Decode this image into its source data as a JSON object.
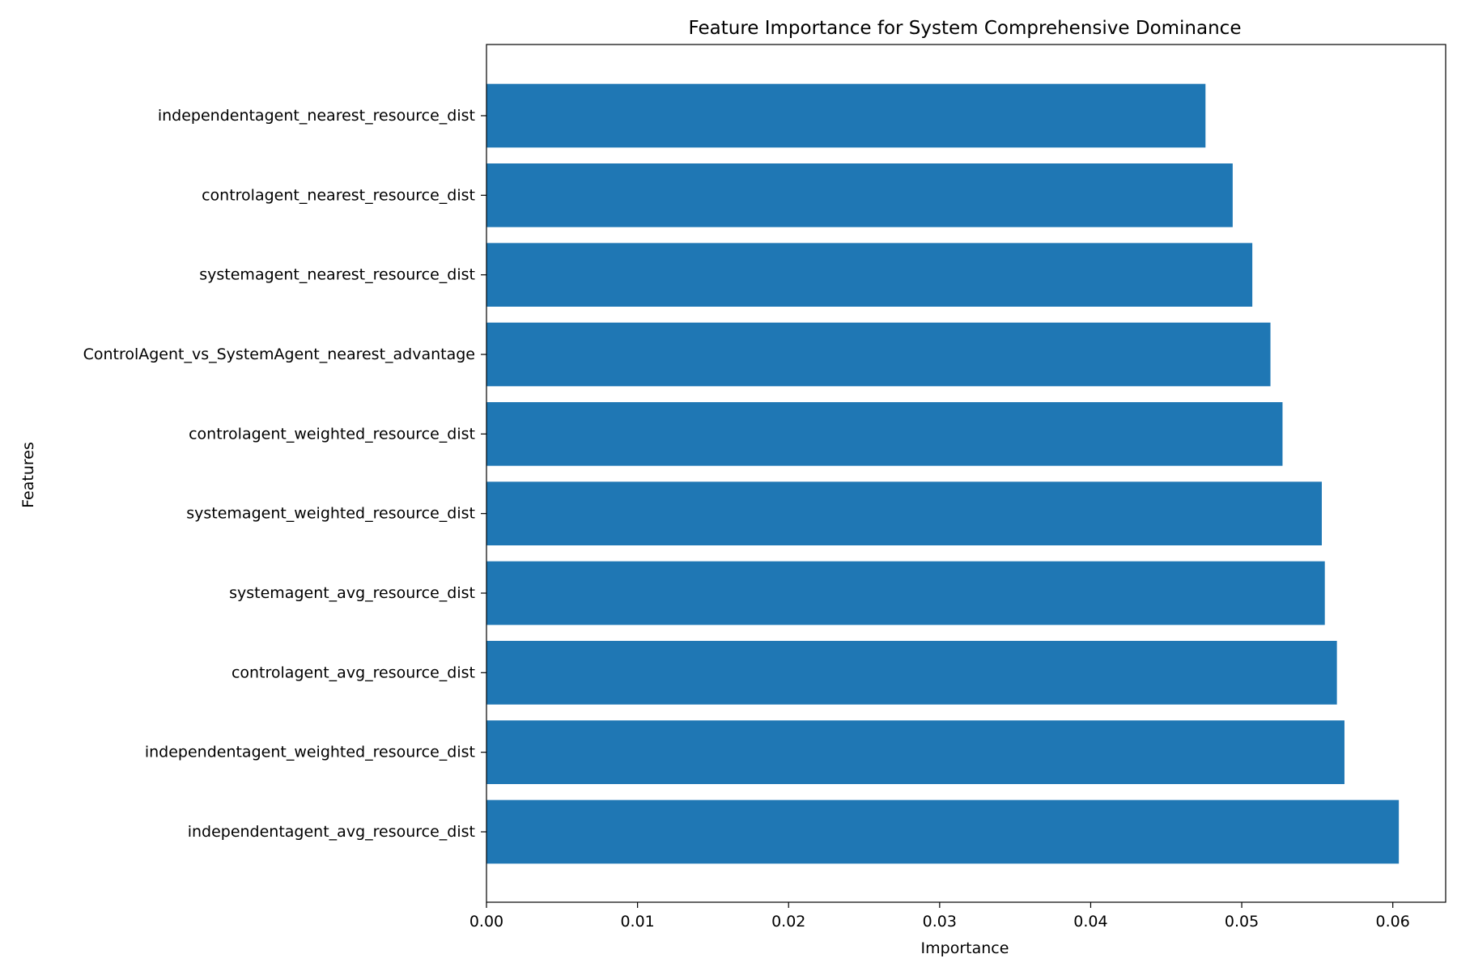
{
  "chart_data": {
    "type": "bar",
    "orientation": "horizontal",
    "title": "Feature Importance for System Comprehensive Dominance",
    "xlabel": "Importance",
    "ylabel": "Features",
    "categories": [
      "independentagent_nearest_resource_dist",
      "controlagent_nearest_resource_dist",
      "systemagent_nearest_resource_dist",
      "ControlAgent_vs_SystemAgent_nearest_advantage",
      "controlagent_weighted_resource_dist",
      "systemagent_weighted_resource_dist",
      "systemagent_avg_resource_dist",
      "controlagent_avg_resource_dist",
      "independentagent_weighted_resource_dist",
      "independentagent_avg_resource_dist"
    ],
    "values": [
      0.0476,
      0.0494,
      0.0507,
      0.0519,
      0.0527,
      0.0553,
      0.0555,
      0.0563,
      0.0568,
      0.0604
    ],
    "xlim": [
      0.0,
      0.0635
    ],
    "xticks": [
      "0.00",
      "0.01",
      "0.02",
      "0.03",
      "0.04",
      "0.05",
      "0.06"
    ],
    "xtick_values": [
      0.0,
      0.01,
      0.02,
      0.03,
      0.04,
      0.05,
      0.06
    ],
    "bar_color": "#1f77b4",
    "grid": false,
    "legend": "none"
  }
}
